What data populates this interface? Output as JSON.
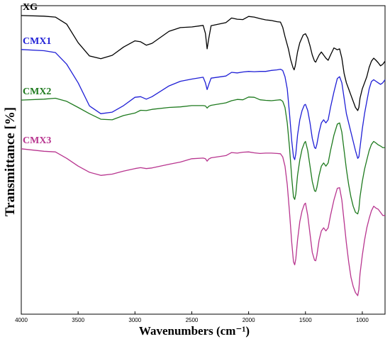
{
  "chart_data": {
    "type": "line",
    "title": "",
    "xlabel": "Wavenumbers (cm⁻¹)",
    "ylabel": "Transmittance [%]",
    "xlim": [
      4000,
      800
    ],
    "x_reversed": true,
    "x_ticks": [
      4000,
      3500,
      3000,
      2500,
      2000,
      1500,
      1000
    ],
    "y_ticks": [],
    "ylim": [
      0,
      100
    ],
    "grid": false,
    "legend": "inline-labels",
    "series": [
      {
        "name": "XG",
        "color": "#000000",
        "points": [
          [
            4000,
            96.8
          ],
          [
            3800,
            96.6
          ],
          [
            3700,
            96.3
          ],
          [
            3600,
            94
          ],
          [
            3500,
            88
          ],
          [
            3400,
            83.7
          ],
          [
            3300,
            82.8
          ],
          [
            3200,
            83.9
          ],
          [
            3100,
            86.6
          ],
          [
            3000,
            88.6
          ],
          [
            2950,
            88.3
          ],
          [
            2900,
            87.2
          ],
          [
            2850,
            87.8
          ],
          [
            2700,
            91.7
          ],
          [
            2600,
            92.9
          ],
          [
            2500,
            93.1
          ],
          [
            2400,
            93.6
          ],
          [
            2380,
            91
          ],
          [
            2365,
            86
          ],
          [
            2350,
            89.5
          ],
          [
            2330,
            93.5
          ],
          [
            2200,
            94.5
          ],
          [
            2150,
            96
          ],
          [
            2100,
            95.6
          ],
          [
            2050,
            95.5
          ],
          [
            2000,
            96.5
          ],
          [
            1950,
            96.3
          ],
          [
            1900,
            95.8
          ],
          [
            1850,
            95.4
          ],
          [
            1800,
            95.2
          ],
          [
            1750,
            94.8
          ],
          [
            1720,
            94.7
          ],
          [
            1700,
            93
          ],
          [
            1680,
            90
          ],
          [
            1650,
            86
          ],
          [
            1630,
            82.5
          ],
          [
            1610,
            80
          ],
          [
            1600,
            79.2
          ],
          [
            1590,
            80.5
          ],
          [
            1570,
            85
          ],
          [
            1550,
            88
          ],
          [
            1520,
            90.5
          ],
          [
            1500,
            90.9
          ],
          [
            1480,
            89.5
          ],
          [
            1460,
            87
          ],
          [
            1440,
            84
          ],
          [
            1420,
            82
          ],
          [
            1410,
            81.7
          ],
          [
            1400,
            82.5
          ],
          [
            1380,
            84
          ],
          [
            1360,
            85
          ],
          [
            1340,
            84
          ],
          [
            1320,
            83
          ],
          [
            1300,
            82.3
          ],
          [
            1280,
            84
          ],
          [
            1250,
            86.3
          ],
          [
            1220,
            85.7
          ],
          [
            1200,
            86
          ],
          [
            1180,
            83
          ],
          [
            1160,
            78
          ],
          [
            1140,
            75
          ],
          [
            1120,
            73
          ],
          [
            1100,
            71
          ],
          [
            1080,
            69
          ],
          [
            1060,
            67
          ],
          [
            1040,
            66
          ],
          [
            1030,
            67
          ],
          [
            1020,
            70
          ],
          [
            1000,
            73
          ],
          [
            980,
            75
          ],
          [
            960,
            77
          ],
          [
            940,
            80
          ],
          [
            920,
            82
          ],
          [
            900,
            83
          ],
          [
            880,
            82.3
          ],
          [
            860,
            81.5
          ],
          [
            840,
            80.5
          ],
          [
            820,
            81
          ],
          [
            800,
            82
          ]
        ]
      },
      {
        "name": "CMX1",
        "color": "#1f1fd6",
        "points": [
          [
            4000,
            85.8
          ],
          [
            3800,
            85.4
          ],
          [
            3700,
            84.8
          ],
          [
            3600,
            81
          ],
          [
            3500,
            75
          ],
          [
            3400,
            67.5
          ],
          [
            3300,
            65
          ],
          [
            3200,
            65.5
          ],
          [
            3100,
            67.6
          ],
          [
            3000,
            70.3
          ],
          [
            2950,
            70.5
          ],
          [
            2900,
            69.7
          ],
          [
            2850,
            70.5
          ],
          [
            2700,
            74
          ],
          [
            2600,
            75.5
          ],
          [
            2500,
            76.2
          ],
          [
            2400,
            76.8
          ],
          [
            2380,
            75
          ],
          [
            2365,
            72.8
          ],
          [
            2350,
            74.5
          ],
          [
            2330,
            76.5
          ],
          [
            2200,
            77.2
          ],
          [
            2150,
            78.4
          ],
          [
            2100,
            78.2
          ],
          [
            2050,
            78.5
          ],
          [
            2000,
            78.7
          ],
          [
            1950,
            78.6
          ],
          [
            1900,
            78.7
          ],
          [
            1850,
            78.7
          ],
          [
            1800,
            79
          ],
          [
            1750,
            79.2
          ],
          [
            1720,
            79.4
          ],
          [
            1700,
            79
          ],
          [
            1680,
            77
          ],
          [
            1660,
            73
          ],
          [
            1640,
            65
          ],
          [
            1620,
            56
          ],
          [
            1605,
            51
          ],
          [
            1595,
            50.1
          ],
          [
            1585,
            52
          ],
          [
            1570,
            58
          ],
          [
            1550,
            63
          ],
          [
            1530,
            66
          ],
          [
            1510,
            67.8
          ],
          [
            1500,
            68
          ],
          [
            1480,
            66
          ],
          [
            1460,
            62
          ],
          [
            1440,
            57
          ],
          [
            1420,
            54
          ],
          [
            1410,
            53.7
          ],
          [
            1400,
            55
          ],
          [
            1380,
            59
          ],
          [
            1360,
            62
          ],
          [
            1340,
            63
          ],
          [
            1330,
            62.5
          ],
          [
            1320,
            62
          ],
          [
            1300,
            63
          ],
          [
            1280,
            67
          ],
          [
            1250,
            72
          ],
          [
            1220,
            76.4
          ],
          [
            1200,
            77
          ],
          [
            1180,
            75
          ],
          [
            1160,
            70
          ],
          [
            1140,
            65
          ],
          [
            1120,
            62
          ],
          [
            1100,
            59
          ],
          [
            1080,
            56
          ],
          [
            1060,
            53
          ],
          [
            1040,
            50.5
          ],
          [
            1030,
            51
          ],
          [
            1020,
            54
          ],
          [
            1000,
            60
          ],
          [
            980,
            65
          ],
          [
            960,
            69
          ],
          [
            940,
            73
          ],
          [
            920,
            75.4
          ],
          [
            900,
            76
          ],
          [
            880,
            75.5
          ],
          [
            860,
            75
          ],
          [
            840,
            74.5
          ],
          [
            820,
            75
          ],
          [
            800,
            76
          ]
        ]
      },
      {
        "name": "CMX2",
        "color": "#1e7a1e",
        "points": [
          [
            4000,
            69.4
          ],
          [
            3800,
            69.7
          ],
          [
            3700,
            70
          ],
          [
            3600,
            69
          ],
          [
            3500,
            67
          ],
          [
            3400,
            65
          ],
          [
            3300,
            63.2
          ],
          [
            3200,
            63
          ],
          [
            3100,
            64.4
          ],
          [
            3000,
            65.2
          ],
          [
            2950,
            66.1
          ],
          [
            2900,
            66
          ],
          [
            2850,
            66.4
          ],
          [
            2700,
            67
          ],
          [
            2600,
            67.2
          ],
          [
            2500,
            67.6
          ],
          [
            2400,
            67.6
          ],
          [
            2380,
            67.5
          ],
          [
            2365,
            66.8
          ],
          [
            2350,
            67.4
          ],
          [
            2330,
            67.7
          ],
          [
            2200,
            68.5
          ],
          [
            2150,
            69.2
          ],
          [
            2100,
            69.6
          ],
          [
            2050,
            69.5
          ],
          [
            2000,
            70.4
          ],
          [
            1950,
            70.3
          ],
          [
            1900,
            69.5
          ],
          [
            1850,
            69.3
          ],
          [
            1800,
            69.2
          ],
          [
            1750,
            69.4
          ],
          [
            1720,
            69.5
          ],
          [
            1700,
            69
          ],
          [
            1680,
            67
          ],
          [
            1660,
            62
          ],
          [
            1640,
            54
          ],
          [
            1620,
            44
          ],
          [
            1605,
            38
          ],
          [
            1595,
            37.2
          ],
          [
            1585,
            39
          ],
          [
            1570,
            45
          ],
          [
            1550,
            50
          ],
          [
            1530,
            53.5
          ],
          [
            1510,
            55.5
          ],
          [
            1500,
            56
          ],
          [
            1480,
            53
          ],
          [
            1460,
            48
          ],
          [
            1440,
            43
          ],
          [
            1420,
            40
          ],
          [
            1410,
            39.8
          ],
          [
            1400,
            41
          ],
          [
            1380,
            45
          ],
          [
            1360,
            48
          ],
          [
            1340,
            49
          ],
          [
            1330,
            48.5
          ],
          [
            1320,
            48
          ],
          [
            1300,
            49
          ],
          [
            1280,
            53
          ],
          [
            1250,
            58
          ],
          [
            1220,
            61.6
          ],
          [
            1200,
            62
          ],
          [
            1180,
            59
          ],
          [
            1160,
            53
          ],
          [
            1140,
            47
          ],
          [
            1120,
            42
          ],
          [
            1100,
            38
          ],
          [
            1080,
            35
          ],
          [
            1060,
            33
          ],
          [
            1040,
            32.5
          ],
          [
            1030,
            34
          ],
          [
            1020,
            38
          ],
          [
            1000,
            43
          ],
          [
            980,
            47
          ],
          [
            960,
            50
          ],
          [
            940,
            53
          ],
          [
            920,
            55
          ],
          [
            900,
            56
          ],
          [
            880,
            55.5
          ],
          [
            860,
            54.9
          ],
          [
            840,
            54.5
          ],
          [
            820,
            54
          ],
          [
            800,
            54
          ]
        ]
      },
      {
        "name": "CMX3",
        "color": "#b8358f",
        "points": [
          [
            4000,
            53.6
          ],
          [
            3800,
            52.8
          ],
          [
            3700,
            52.6
          ],
          [
            3600,
            50.5
          ],
          [
            3500,
            48
          ],
          [
            3400,
            46
          ],
          [
            3300,
            45
          ],
          [
            3200,
            45.4
          ],
          [
            3100,
            46.4
          ],
          [
            3000,
            47.2
          ],
          [
            2950,
            47.5
          ],
          [
            2900,
            47.2
          ],
          [
            2850,
            47.4
          ],
          [
            2700,
            48.6
          ],
          [
            2600,
            49.3
          ],
          [
            2500,
            50.4
          ],
          [
            2400,
            50.6
          ],
          [
            2380,
            50.4
          ],
          [
            2365,
            49.6
          ],
          [
            2350,
            50.3
          ],
          [
            2330,
            50.7
          ],
          [
            2200,
            51.4
          ],
          [
            2150,
            52.4
          ],
          [
            2100,
            52.2
          ],
          [
            2050,
            52.5
          ],
          [
            2000,
            52.6
          ],
          [
            1950,
            52.3
          ],
          [
            1900,
            52.1
          ],
          [
            1850,
            52.2
          ],
          [
            1800,
            52.2
          ],
          [
            1750,
            52.1
          ],
          [
            1720,
            52
          ],
          [
            1700,
            51
          ],
          [
            1680,
            48
          ],
          [
            1660,
            42
          ],
          [
            1640,
            33
          ],
          [
            1620,
            23
          ],
          [
            1605,
            17
          ],
          [
            1595,
            16
          ],
          [
            1585,
            18
          ],
          [
            1570,
            24
          ],
          [
            1550,
            30
          ],
          [
            1530,
            33.5
          ],
          [
            1510,
            35.6
          ],
          [
            1500,
            36
          ],
          [
            1480,
            32
          ],
          [
            1460,
            26
          ],
          [
            1440,
            20
          ],
          [
            1420,
            17.5
          ],
          [
            1410,
            17.3
          ],
          [
            1400,
            19
          ],
          [
            1380,
            24
          ],
          [
            1360,
            27
          ],
          [
            1340,
            28
          ],
          [
            1330,
            27.5
          ],
          [
            1320,
            27
          ],
          [
            1300,
            28
          ],
          [
            1280,
            32
          ],
          [
            1250,
            37
          ],
          [
            1220,
            40.8
          ],
          [
            1200,
            41
          ],
          [
            1180,
            37
          ],
          [
            1160,
            30
          ],
          [
            1140,
            23
          ],
          [
            1120,
            17
          ],
          [
            1100,
            12
          ],
          [
            1080,
            9
          ],
          [
            1060,
            7
          ],
          [
            1040,
            6
          ],
          [
            1030,
            8
          ],
          [
            1020,
            13
          ],
          [
            1000,
            19
          ],
          [
            980,
            24
          ],
          [
            960,
            28
          ],
          [
            940,
            31
          ],
          [
            920,
            33.5
          ],
          [
            900,
            35
          ],
          [
            880,
            34.4
          ],
          [
            860,
            34
          ],
          [
            840,
            33
          ],
          [
            820,
            32
          ],
          [
            800,
            32
          ]
        ]
      }
    ]
  }
}
